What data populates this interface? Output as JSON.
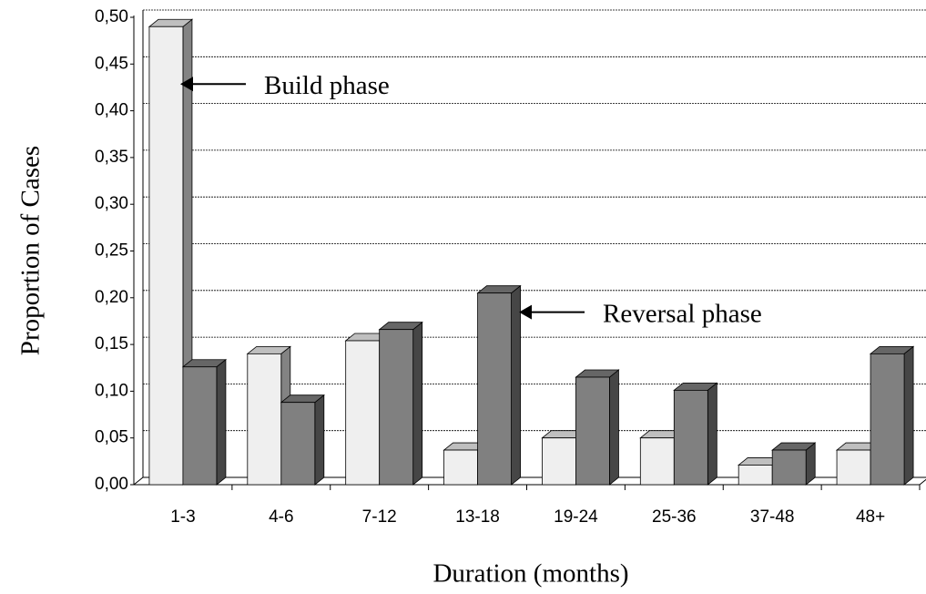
{
  "chart_data": {
    "type": "bar3d",
    "x_label": "Duration (months)",
    "y_label": "Proportion of Cases",
    "categories": [
      "1-3",
      "4-6",
      "7-12",
      "13-18",
      "19-24",
      "25-36",
      "37-48",
      "48+"
    ],
    "series": [
      {
        "color": "#efefef",
        "values": [
          0.49,
          0.14,
          0.154,
          0.037,
          0.05,
          0.05,
          0.021,
          0.037
        ]
      },
      {
        "color": "#808080",
        "values": [
          0.126,
          0.088,
          0.166,
          0.205,
          0.115,
          0.101,
          0.037,
          0.14
        ]
      }
    ],
    "annotations": [
      "Build phase",
      "Reversal phase"
    ],
    "ylim": [
      0,
      0.5
    ],
    "yticks": [
      {
        "value": 0,
        "label": "0,00"
      },
      {
        "value": 0.05,
        "label": "0,05"
      },
      {
        "value": 0.1,
        "label": "0,10"
      },
      {
        "value": 0.15,
        "label": "0,15"
      },
      {
        "value": 0.2,
        "label": "0,20"
      },
      {
        "value": 0.25,
        "label": "0,25"
      },
      {
        "value": 0.3,
        "label": "0,30"
      },
      {
        "value": 0.35,
        "label": "0,35"
      },
      {
        "value": 0.4,
        "label": "0,40"
      },
      {
        "value": 0.45,
        "label": "0,45"
      },
      {
        "value": 0.5,
        "label": "0,50"
      }
    ],
    "grid": true
  }
}
